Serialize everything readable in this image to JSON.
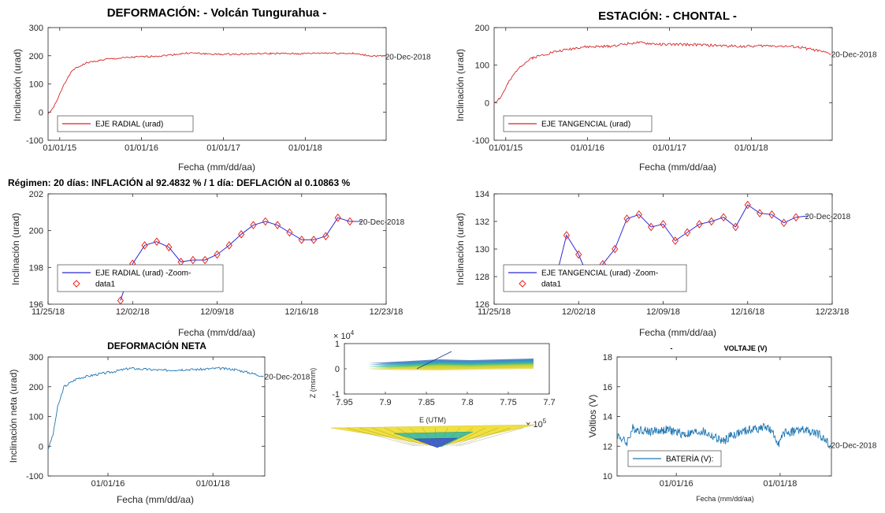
{
  "regimen_text": "Régimen: 20 días: INFLACIÓN al 92.4832 % / 1 día: DEFLACIÓN al 0.10863 %",
  "colors": {
    "red": "#d62728",
    "blue": "#2b2bd6",
    "teal": "#1f77b4",
    "diamond": "#e6261f"
  },
  "chart_data": [
    {
      "id": "radial",
      "type": "line",
      "title": "DEFORMACIÓN: - Volcán Tungurahua -",
      "xlabel": "Fecha (mm/dd/aa)",
      "ylabel": "Inclinación (urad)",
      "x_ticks": [
        "01/01/15",
        "01/01/16",
        "01/01/17",
        "01/01/18"
      ],
      "y_ticks": [
        "300",
        "200",
        "100",
        "0",
        "-100"
      ],
      "xlim": [
        "2014-11-10",
        "2018-12-28"
      ],
      "ylim": [
        -100,
        300
      ],
      "end_label": "20-Dec-2018",
      "color": "#d62728",
      "legend": "EJE RADIAL (urad)",
      "legend_position": "bottom-left",
      "series": [
        {
          "name": "EJE RADIAL (urad)",
          "points": [
            [
              "2014-11-10",
              -5
            ],
            [
              "2014-11-25",
              5
            ],
            [
              "2014-12-20",
              40
            ],
            [
              "2015-01-20",
              100
            ],
            [
              "2015-03-01",
              150
            ],
            [
              "2015-05-01",
              175
            ],
            [
              "2015-08-01",
              188
            ],
            [
              "2015-12-01",
              195
            ],
            [
              "2016-04-01",
              200
            ],
            [
              "2016-08-01",
              210
            ],
            [
              "2016-12-01",
              205
            ],
            [
              "2017-04-01",
              206
            ],
            [
              "2017-08-01",
              208
            ],
            [
              "2017-12-01",
              207
            ],
            [
              "2018-04-01",
              210
            ],
            [
              "2018-08-01",
              208
            ],
            [
              "2018-10-15",
              200
            ],
            [
              "2018-12-20",
              198
            ]
          ]
        }
      ]
    },
    {
      "id": "tangencial",
      "type": "line",
      "title": "ESTACIÓN: - CHONTAL -",
      "xlabel": "Fecha (mm/dd/aa)",
      "ylabel": "Inclinación (urad)",
      "x_ticks": [
        "01/01/15",
        "01/01/16",
        "01/01/17",
        "01/01/18"
      ],
      "y_ticks": [
        "200",
        "100",
        "0",
        "-100"
      ],
      "xlim": [
        "2014-11-10",
        "2018-12-28"
      ],
      "ylim": [
        -100,
        200
      ],
      "end_label": "20-Dec-2018",
      "color": "#d62728",
      "legend": "EJE TANGENCIAL (urad)",
      "legend_position": "bottom-left",
      "series": [
        {
          "name": "EJE TANGENCIAL (urad)",
          "points": [
            [
              "2014-11-10",
              0
            ],
            [
              "2014-12-10",
              15
            ],
            [
              "2015-01-10",
              50
            ],
            [
              "2015-03-01",
              95
            ],
            [
              "2015-05-01",
              120
            ],
            [
              "2015-08-01",
              135
            ],
            [
              "2015-12-01",
              148
            ],
            [
              "2016-04-01",
              150
            ],
            [
              "2016-08-01",
              160
            ],
            [
              "2016-12-01",
              155
            ],
            [
              "2017-04-01",
              155
            ],
            [
              "2017-08-01",
              152
            ],
            [
              "2017-12-01",
              150
            ],
            [
              "2018-04-01",
              152
            ],
            [
              "2018-08-01",
              148
            ],
            [
              "2018-10-15",
              140
            ],
            [
              "2018-12-20",
              130
            ]
          ]
        }
      ]
    },
    {
      "id": "radial_zoom",
      "type": "line",
      "xlabel": "Fecha (mm/dd/aa)",
      "ylabel": "Inclinación (urad)",
      "x_ticks": [
        "11/25/18",
        "12/02/18",
        "12/09/18",
        "12/16/18",
        "12/23/18"
      ],
      "y_ticks": [
        "202",
        "200",
        "198",
        "196"
      ],
      "xlim": [
        0,
        28
      ],
      "ylim": [
        196,
        202
      ],
      "end_label": "20-Dec-2018",
      "line_color": "#2b2bd6",
      "marker_color": "#e6261f",
      "legend": [
        "EJE RADIAL (urad) -Zoom-",
        "data1"
      ],
      "legend_position": "bottom-left",
      "series": [
        {
          "name": "EJE RADIAL (urad) -Zoom-",
          "x": [
            6,
            7,
            8,
            9,
            10,
            11,
            12,
            13,
            14,
            15,
            16,
            17,
            18,
            19,
            20,
            21,
            22,
            23,
            24,
            25,
            26
          ],
          "y": [
            196.2,
            198.2,
            199.2,
            199.4,
            199.1,
            198.3,
            198.4,
            198.4,
            198.7,
            199.2,
            199.8,
            200.3,
            200.5,
            200.3,
            199.9,
            199.5,
            199.5,
            199.7,
            200.7,
            200.5,
            200.5
          ]
        },
        {
          "name": "data1",
          "x": [
            6,
            7,
            8,
            9,
            10,
            11,
            12,
            13,
            14,
            15,
            16,
            17,
            18,
            19,
            20,
            21,
            22,
            23,
            24,
            25
          ],
          "y": [
            196.2,
            198.2,
            199.2,
            199.4,
            199.1,
            198.3,
            198.4,
            198.4,
            198.7,
            199.2,
            199.8,
            200.3,
            200.5,
            200.3,
            199.9,
            199.5,
            199.5,
            199.7,
            200.7,
            200.5
          ]
        }
      ]
    },
    {
      "id": "tangencial_zoom",
      "type": "line",
      "xlabel": "Fecha (mm/dd/aa)",
      "ylabel": "Inclinación (urad)",
      "x_ticks": [
        "11/25/18",
        "12/02/18",
        "12/09/18",
        "12/16/18",
        "12/23/18"
      ],
      "y_ticks": [
        "134",
        "132",
        "130",
        "128",
        "126"
      ],
      "xlim": [
        0,
        28
      ],
      "ylim": [
        126,
        134
      ],
      "end_label": "20-Dec-2018",
      "line_color": "#2b2bd6",
      "marker_color": "#e6261f",
      "legend": [
        "EJE TANGENCIAL (urad) -Zoom-",
        "data1"
      ],
      "legend_position": "bottom-left",
      "series": [
        {
          "name": "EJE TANGENCIAL (urad) -Zoom-",
          "x": [
            5,
            6,
            7,
            8,
            9,
            10,
            11,
            12,
            13,
            14,
            15,
            16,
            17,
            18,
            19,
            20,
            21,
            22,
            23,
            24,
            25,
            26
          ],
          "y": [
            127.5,
            131.0,
            129.6,
            127.5,
            128.9,
            130.0,
            132.2,
            132.5,
            131.6,
            131.8,
            130.6,
            131.2,
            131.8,
            132.0,
            132.3,
            131.6,
            133.2,
            132.6,
            132.5,
            131.9,
            132.3,
            132.4
          ]
        },
        {
          "name": "data1",
          "x": [
            6,
            7,
            9,
            10,
            11,
            12,
            13,
            14,
            15,
            16,
            17,
            18,
            19,
            20,
            21,
            22,
            23,
            24,
            25
          ],
          "y": [
            131.0,
            129.6,
            128.9,
            130.0,
            132.2,
            132.5,
            131.6,
            131.8,
            130.6,
            131.2,
            131.8,
            132.0,
            132.3,
            131.6,
            133.2,
            132.6,
            132.5,
            131.9,
            132.3
          ]
        }
      ]
    },
    {
      "id": "neta",
      "type": "line",
      "title": "DEFORMACIÓN NETA",
      "xlabel": "Fecha (mm/dd/aa)",
      "ylabel": "Inclinación neta (urad)",
      "x_ticks": [
        "01/01/16",
        "01/01/18"
      ],
      "y_ticks": [
        "300",
        "200",
        "100",
        "0",
        "-100"
      ],
      "xlim": [
        "2014-11-10",
        "2018-12-28"
      ],
      "ylim": [
        -100,
        300
      ],
      "end_label": "20-Dec-2018",
      "color": "#1f77b4",
      "series": [
        {
          "name": "neta",
          "points": [
            [
              "2014-11-10",
              -10
            ],
            [
              "2014-12-15",
              40
            ],
            [
              "2015-01-15",
              130
            ],
            [
              "2015-03-01",
              200
            ],
            [
              "2015-06-01",
              228
            ],
            [
              "2015-10-01",
              240
            ],
            [
              "2016-02-01",
              250
            ],
            [
              "2016-06-01",
              262
            ],
            [
              "2016-10-01",
              258
            ],
            [
              "2017-02-01",
              255
            ],
            [
              "2017-06-01",
              258
            ],
            [
              "2017-10-01",
              258
            ],
            [
              "2018-02-01",
              262
            ],
            [
              "2018-06-01",
              258
            ],
            [
              "2018-10-01",
              245
            ],
            [
              "2018-12-20",
              235
            ]
          ]
        }
      ]
    },
    {
      "id": "surface",
      "type": "surface",
      "x_ticks": [
        "7.95",
        "7.9",
        "7.85",
        "7.8",
        "7.75",
        "7.7"
      ],
      "y_ticks": [
        "1",
        "0",
        "-1"
      ],
      "x_exponent": "× 10^5",
      "y_exponent": "× 10^4",
      "ylabel": "Z (msnm)",
      "xlabel": "E (UTM)"
    },
    {
      "id": "voltaje",
      "type": "line",
      "title": "VOLTAJE (V)",
      "xlabel": "Fecha (mm/dd/aa)",
      "ylabel": "Voltios (V)",
      "x_ticks": [
        "01/01/16",
        "01/01/18"
      ],
      "y_ticks": [
        "18",
        "16",
        "14",
        "12",
        "10"
      ],
      "xlim": [
        "2014-11-10",
        "2018-12-28"
      ],
      "ylim": [
        10,
        18
      ],
      "end_label": "20-Dec-2018",
      "color": "#1f77b4",
      "legend": "BATERÍA (V):",
      "legend_position": "bottom-left",
      "series": [
        {
          "name": "BATERÍA (V):",
          "points": [
            [
              "2014-11-10",
              12.8
            ],
            [
              "2015-01-15",
              12.2
            ],
            [
              "2015-03-01",
              13.2
            ],
            [
              "2015-07-01",
              13.0
            ],
            [
              "2015-11-01",
              13.1
            ],
            [
              "2016-03-01",
              12.8
            ],
            [
              "2016-07-01",
              13.0
            ],
            [
              "2016-12-01",
              12.3
            ],
            [
              "2017-01-15",
              12.7
            ],
            [
              "2017-06-01",
              13.1
            ],
            [
              "2017-10-01",
              13.3
            ],
            [
              "2017-12-25",
              12.2
            ],
            [
              "2018-02-01",
              12.9
            ],
            [
              "2018-06-01",
              13.1
            ],
            [
              "2018-10-01",
              12.8
            ],
            [
              "2018-12-20",
              12.1
            ]
          ]
        }
      ]
    }
  ]
}
